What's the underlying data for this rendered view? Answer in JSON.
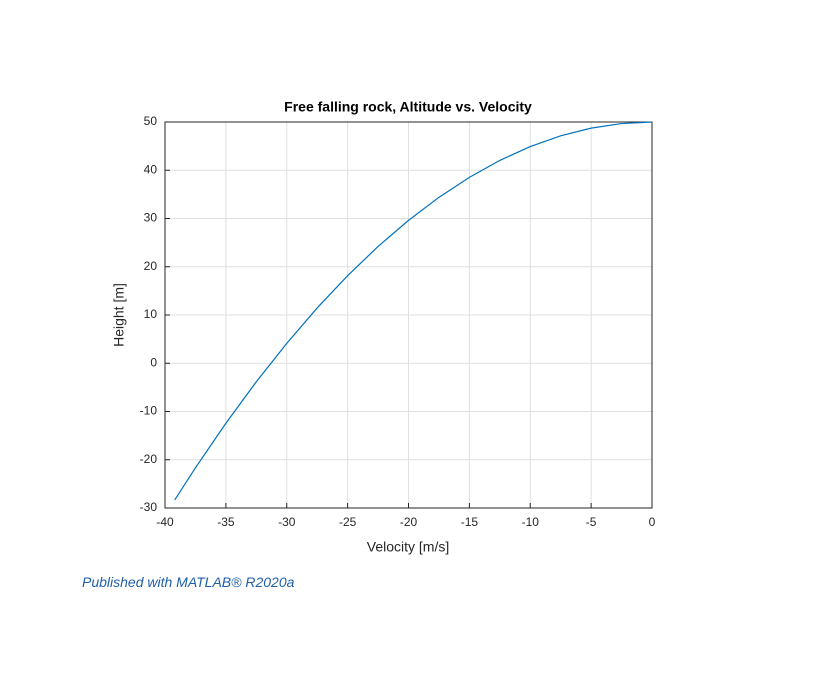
{
  "chart_data": {
    "type": "line",
    "title": "Free falling rock, Altitude vs. Velocity",
    "x_label": "Velocity [m/s]",
    "y_label": "Height [m]",
    "x": [
      -39.2,
      -37.5,
      -35,
      -32.5,
      -30,
      -27.5,
      -25,
      -22.5,
      -20,
      -17.5,
      -15,
      -12.5,
      -10,
      -7.5,
      -5,
      -2.5,
      0
    ],
    "series": [
      {
        "color": "#0072bd",
        "values": [
          -28.32,
          -21.67,
          -12.44,
          -3.84,
          4.13,
          11.46,
          18.14,
          24.2,
          29.61,
          34.39,
          38.53,
          42.04,
          44.9,
          47.13,
          48.73,
          49.68,
          50
        ]
      }
    ],
    "xlim": [
      -40,
      0
    ],
    "ylim": [
      -30,
      50
    ],
    "xticks": [
      -40,
      -35,
      -30,
      -25,
      -20,
      -15,
      -10,
      -5,
      0
    ],
    "yticks": [
      -30,
      -20,
      -10,
      0,
      10,
      20,
      30,
      40,
      50
    ],
    "grid": true
  },
  "footer": "Published with MATLAB® R2020a"
}
